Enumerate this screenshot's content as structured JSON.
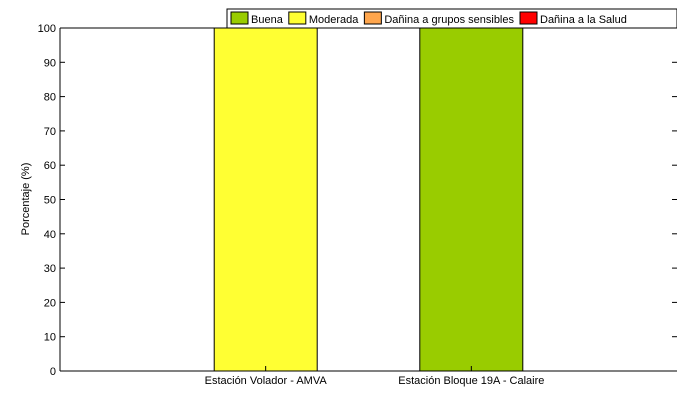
{
  "chart_data": {
    "type": "bar",
    "title": "",
    "xlabel": "",
    "ylabel": "Porcentaje (%)",
    "ylim": [
      0,
      100
    ],
    "yticks": [
      0,
      10,
      20,
      30,
      40,
      50,
      60,
      70,
      80,
      90,
      100
    ],
    "grid": false,
    "stacked": true,
    "legend_position": "top-right",
    "categories": [
      "Estación Volador - AMVA",
      "Estación Bloque 19A - Calaire"
    ],
    "series": [
      {
        "name": "Buena",
        "color": "#99cc00",
        "values": [
          0,
          100
        ]
      },
      {
        "name": "Moderada",
        "color": "#ffff33",
        "values": [
          100,
          0
        ]
      },
      {
        "name": "Dañina a grupos sensibles",
        "color": "#ffa64d",
        "values": [
          0,
          0
        ]
      },
      {
        "name": "Dañina a la Salud",
        "color": "#ff0000",
        "values": [
          0,
          0
        ]
      }
    ]
  }
}
